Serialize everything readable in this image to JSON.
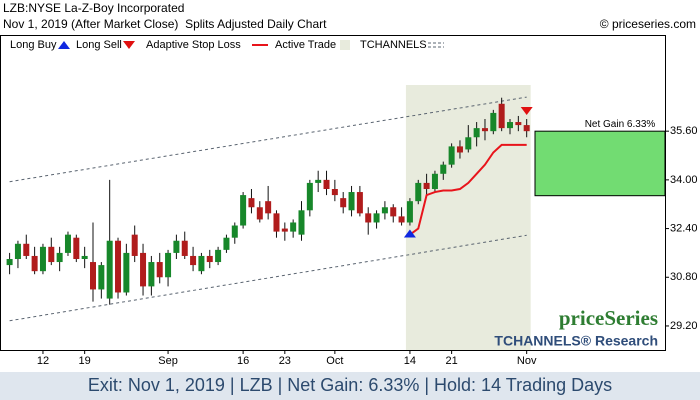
{
  "chart_data": {
    "type": "candlestick",
    "title": "LZB:NYSE La-Z-Boy Incorporated",
    "subtitle": "Nov 1, 2019 (After Market Close)  Splits Adjusted Daily Chart",
    "copyright": "© priceseries.com",
    "legend": {
      "long_buy": "Long Buy",
      "long_sell": "Long Sell",
      "stop_loss": "Adaptive Stop Loss",
      "active_trade": "Active Trade",
      "channels": "TCHANNELS"
    },
    "categories": [
      null,
      null,
      null,
      null,
      "12",
      null,
      null,
      null,
      null,
      "19",
      null,
      null,
      null,
      null,
      null,
      null,
      null,
      null,
      null,
      "Sep",
      null,
      null,
      null,
      null,
      null,
      null,
      null,
      null,
      "16",
      null,
      null,
      null,
      null,
      "23",
      null,
      null,
      null,
      null,
      null,
      "Oct",
      null,
      null,
      null,
      null,
      null,
      null,
      null,
      null,
      "14",
      null,
      null,
      null,
      null,
      "21",
      null,
      null,
      null,
      null,
      null,
      null,
      null,
      null,
      "Nov"
    ],
    "series": [
      {
        "name": "LZB",
        "up_color": "#17872a",
        "down_color": "#b01c1c",
        "values": [
          [
            31.2,
            31.6,
            30.9,
            31.4
          ],
          [
            31.4,
            32.0,
            31.1,
            31.9
          ],
          [
            31.9,
            32.2,
            31.4,
            31.5
          ],
          [
            31.5,
            31.8,
            30.9,
            31.0
          ],
          [
            31.0,
            31.9,
            30.9,
            31.8
          ],
          [
            31.8,
            32.1,
            31.2,
            31.3
          ],
          [
            31.3,
            31.8,
            31.0,
            31.6
          ],
          [
            31.6,
            32.3,
            31.5,
            32.2
          ],
          [
            32.1,
            32.2,
            31.3,
            31.4
          ],
          [
            31.4,
            31.8,
            31.1,
            31.5
          ],
          [
            31.3,
            32.6,
            30.0,
            30.4
          ],
          [
            30.4,
            31.3,
            30.1,
            31.2
          ],
          [
            30.1,
            34.0,
            29.9,
            32.0
          ],
          [
            32.0,
            32.1,
            30.1,
            30.3
          ],
          [
            30.3,
            31.9,
            30.2,
            31.6
          ],
          [
            32.2,
            32.5,
            31.3,
            31.5
          ],
          [
            31.6,
            31.9,
            30.2,
            30.5
          ],
          [
            30.5,
            31.5,
            30.2,
            31.3
          ],
          [
            31.3,
            31.6,
            30.6,
            30.8
          ],
          [
            30.8,
            31.7,
            30.5,
            31.6
          ],
          [
            31.6,
            32.2,
            31.4,
            32.0
          ],
          [
            32.0,
            32.3,
            31.4,
            31.5
          ],
          [
            31.5,
            31.8,
            31.0,
            31.2
          ],
          [
            31.0,
            31.6,
            30.9,
            31.5
          ],
          [
            31.5,
            31.7,
            31.1,
            31.3
          ],
          [
            31.3,
            31.8,
            31.2,
            31.7
          ],
          [
            31.7,
            32.2,
            31.6,
            32.1
          ],
          [
            32.1,
            32.6,
            31.9,
            32.5
          ],
          [
            32.5,
            33.6,
            32.4,
            33.5
          ],
          [
            33.4,
            33.7,
            32.9,
            33.1
          ],
          [
            33.1,
            33.3,
            32.6,
            32.7
          ],
          [
            33.3,
            33.8,
            32.7,
            32.9
          ],
          [
            32.9,
            33.0,
            32.1,
            32.3
          ],
          [
            32.4,
            32.6,
            32.0,
            32.3
          ],
          [
            32.3,
            32.7,
            32.1,
            32.6
          ],
          [
            32.2,
            33.3,
            32.0,
            33.0
          ],
          [
            33.0,
            34.0,
            32.8,
            33.9
          ],
          [
            33.9,
            34.3,
            33.6,
            34.0
          ],
          [
            34.0,
            34.3,
            33.5,
            33.7
          ],
          [
            33.7,
            34.0,
            33.3,
            33.5
          ],
          [
            33.4,
            33.6,
            32.9,
            33.1
          ],
          [
            33.0,
            33.8,
            32.8,
            33.6
          ],
          [
            33.6,
            33.8,
            32.8,
            32.9
          ],
          [
            32.9,
            33.1,
            32.2,
            32.6
          ],
          [
            32.6,
            33.0,
            32.4,
            32.9
          ],
          [
            32.9,
            33.3,
            32.7,
            33.1
          ],
          [
            33.1,
            33.2,
            32.6,
            32.8
          ],
          [
            32.8,
            33.1,
            32.5,
            32.6
          ],
          [
            32.6,
            33.4,
            32.5,
            33.3
          ],
          [
            33.3,
            34.0,
            33.2,
            33.9
          ],
          [
            33.9,
            34.2,
            33.5,
            33.7
          ],
          [
            33.7,
            34.3,
            33.6,
            34.2
          ],
          [
            34.2,
            34.6,
            34.0,
            34.5
          ],
          [
            34.5,
            35.2,
            34.4,
            35.1
          ],
          [
            35.1,
            35.3,
            34.7,
            34.9
          ],
          [
            35.0,
            35.8,
            34.9,
            35.4
          ],
          [
            35.4,
            35.9,
            35.1,
            35.7
          ],
          [
            35.7,
            36.0,
            35.3,
            35.6
          ],
          [
            35.6,
            36.3,
            35.5,
            36.2
          ],
          [
            36.5,
            36.7,
            35.6,
            35.7
          ],
          [
            35.7,
            36.0,
            35.5,
            35.9
          ],
          [
            35.9,
            36.1,
            35.6,
            35.8
          ],
          [
            35.8,
            36.0,
            35.4,
            35.6
          ]
        ]
      },
      {
        "name": "Adaptive Stop Loss",
        "color": "#e8141b",
        "values": [
          null,
          null,
          null,
          null,
          null,
          null,
          null,
          null,
          null,
          null,
          null,
          null,
          null,
          null,
          null,
          null,
          null,
          null,
          null,
          null,
          null,
          null,
          null,
          null,
          null,
          null,
          null,
          null,
          null,
          null,
          null,
          null,
          null,
          null,
          null,
          null,
          null,
          null,
          null,
          null,
          null,
          null,
          null,
          null,
          null,
          null,
          null,
          null,
          32.2,
          32.4,
          33.5,
          33.6,
          33.65,
          33.65,
          33.7,
          33.9,
          34.2,
          34.5,
          34.9,
          35.15,
          35.15,
          35.15,
          35.15
        ]
      }
    ],
    "channels": {
      "color": "#5a6470",
      "upper": [
        33.94,
        36.72
      ],
      "lower": [
        29.37,
        32.18
      ]
    },
    "active_trade_color": "#e8ebdd",
    "buy_color": "#1028e0",
    "sell_color": "#e01010",
    "trade": {
      "entry": 33.48,
      "exit": 35.6,
      "color": "#72dc72",
      "label": "Net Gain 6.33%"
    },
    "ylim": [
      28.41,
      38.76
    ],
    "yticks": [
      {
        "value": 29.2,
        "label": "29.20"
      },
      {
        "value": 30.8,
        "label": "30.80"
      },
      {
        "value": 32.4,
        "label": "32.40"
      },
      {
        "value": 34,
        "label": "34.00"
      },
      {
        "value": 35.6,
        "label": "35.60"
      }
    ],
    "watermark": "priceSeries",
    "watermark_sub": "TCHANNELS® Research",
    "footer": "Exit: Nov 1, 2019 | LZB | Net Gain: 6.33% | Hold: 14 Trading Days"
  }
}
